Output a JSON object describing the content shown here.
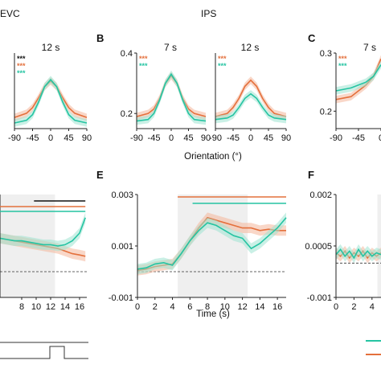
{
  "titles": {
    "evc": "EVC",
    "ips": "IPS"
  },
  "colors": {
    "orange": "#e4703c",
    "teal": "#25c4a2",
    "orange_fill": "#f4b79a",
    "teal_fill": "#9fe3d2",
    "shade": "#efefef"
  },
  "icons": [
    "star-marker",
    "significance-bar",
    "dashed-baseline"
  ],
  "chart_data": [
    {
      "id": "evc-12s",
      "panel": "",
      "type": "line",
      "title": "12 s",
      "xlim": [
        -90,
        90
      ],
      "ylim": [
        0.15,
        0.42
      ],
      "xticks": [
        "-90",
        "-45",
        "0",
        "45",
        "90"
      ],
      "stars": [
        "***",
        "***",
        "***"
      ],
      "series": [
        {
          "x": [
            -90,
            -60,
            -45,
            -30,
            -15,
            0,
            15,
            30,
            45,
            60,
            90
          ],
          "y": [
            0.19,
            0.205,
            0.225,
            0.26,
            0.3,
            0.32,
            0.3,
            0.26,
            0.225,
            0.205,
            0.19
          ]
        },
        {
          "x": [
            -90,
            -60,
            -45,
            -30,
            -15,
            0,
            15,
            30,
            45,
            60,
            90
          ],
          "y": [
            0.17,
            0.18,
            0.2,
            0.245,
            0.3,
            0.325,
            0.3,
            0.245,
            0.2,
            0.18,
            0.17
          ]
        }
      ]
    },
    {
      "id": "ips-7s",
      "panel": "B",
      "type": "line",
      "title": "7 s",
      "xlim": [
        -90,
        90
      ],
      "ylim": [
        0.15,
        0.4
      ],
      "yticks": [
        "0.4",
        "0.2"
      ],
      "xticks": [
        "-90",
        "-45",
        "0",
        "45",
        "90"
      ],
      "stars": [
        "***",
        "***"
      ],
      "series": [
        {
          "x": [
            -90,
            -60,
            -45,
            -30,
            -15,
            0,
            15,
            30,
            45,
            60,
            90
          ],
          "y": [
            0.19,
            0.2,
            0.215,
            0.25,
            0.3,
            0.325,
            0.3,
            0.25,
            0.215,
            0.2,
            0.19
          ]
        },
        {
          "x": [
            -90,
            -60,
            -45,
            -30,
            -15,
            0,
            15,
            30,
            45,
            60,
            90
          ],
          "y": [
            0.175,
            0.18,
            0.2,
            0.245,
            0.3,
            0.33,
            0.3,
            0.245,
            0.2,
            0.18,
            0.175
          ]
        }
      ]
    },
    {
      "id": "ips-12s",
      "panel": "",
      "type": "line",
      "title": "12 s",
      "xlim": [
        -90,
        90
      ],
      "ylim": [
        0.15,
        0.4
      ],
      "xticks": [
        "-90",
        "-45",
        "0",
        "45",
        "90"
      ],
      "stars": [
        "***",
        "***"
      ],
      "series": [
        {
          "x": [
            -90,
            -60,
            -45,
            -30,
            -15,
            0,
            15,
            30,
            45,
            60,
            90
          ],
          "y": [
            0.19,
            0.2,
            0.22,
            0.25,
            0.29,
            0.31,
            0.29,
            0.25,
            0.22,
            0.2,
            0.19
          ]
        },
        {
          "x": [
            -90,
            -60,
            -45,
            -30,
            -15,
            0,
            15,
            30,
            45,
            60,
            90
          ],
          "y": [
            0.18,
            0.185,
            0.195,
            0.22,
            0.25,
            0.265,
            0.25,
            0.22,
            0.195,
            0.185,
            0.18
          ]
        }
      ]
    },
    {
      "id": "c-7s",
      "panel": "C",
      "type": "line",
      "title": "7 s",
      "xlim": [
        -90,
        0
      ],
      "ylim": [
        0.17,
        0.3
      ],
      "yticks": [
        "0.3",
        "0.2"
      ],
      "xticks": [
        "-90",
        "-45",
        "0"
      ],
      "stars": [
        "***",
        "***"
      ],
      "series": [
        {
          "x": [
            -90,
            -60,
            -45,
            -30,
            -15,
            0
          ],
          "y": [
            0.22,
            0.225,
            0.235,
            0.245,
            0.26,
            0.29
          ]
        },
        {
          "x": [
            -90,
            -60,
            -45,
            -30,
            -15,
            0
          ],
          "y": [
            0.235,
            0.24,
            0.245,
            0.25,
            0.26,
            0.28
          ]
        }
      ]
    },
    {
      "id": "evc-time",
      "panel": "",
      "type": "line",
      "xlim": [
        5,
        17
      ],
      "ylim": [
        -0.001,
        0.003
      ],
      "xticks": [
        "8",
        "10",
        "12",
        "14",
        "16"
      ],
      "series": [
        {
          "x": [
            5,
            6,
            7,
            8,
            9,
            10,
            11,
            12,
            13,
            14,
            15,
            16,
            16.8
          ],
          "y": [
            0.0013,
            0.00125,
            0.0012,
            0.00115,
            0.0011,
            0.00105,
            0.001,
            0.00095,
            0.0009,
            0.0008,
            0.0007,
            0.00065,
            0.0006
          ]
        },
        {
          "x": [
            5,
            6,
            7,
            8,
            9,
            10,
            11,
            12,
            13,
            14,
            15,
            16,
            16.8
          ],
          "y": [
            0.0013,
            0.00125,
            0.0012,
            0.0012,
            0.00115,
            0.0011,
            0.00105,
            0.00105,
            0.001,
            0.00105,
            0.0012,
            0.0015,
            0.0021
          ]
        }
      ]
    },
    {
      "id": "ips-time",
      "panel": "E",
      "type": "line",
      "xlabel": "Time (s)",
      "xlim": [
        0,
        17
      ],
      "ylim": [
        -0.001,
        0.003
      ],
      "yticks": [
        "0.003",
        "0.001",
        "-0.001"
      ],
      "xticks": [
        "0",
        "2",
        "4",
        "6",
        "8",
        "10",
        "12",
        "14",
        "16"
      ],
      "series": [
        {
          "x": [
            0,
            1,
            2,
            3,
            4,
            5,
            6,
            7,
            8,
            9,
            10,
            11,
            12,
            13,
            14,
            15,
            16,
            17
          ],
          "y": [
            5e-05,
            0.0001,
            0.0002,
            0.00025,
            0.0003,
            0.0007,
            0.0012,
            0.0017,
            0.0021,
            0.002,
            0.0019,
            0.0018,
            0.0017,
            0.0017,
            0.0016,
            0.00165,
            0.0016,
            0.0016
          ]
        },
        {
          "x": [
            0,
            1,
            2,
            3,
            4,
            5,
            6,
            7,
            8,
            9,
            10,
            11,
            12,
            13,
            14,
            15,
            16,
            17
          ],
          "y": [
            0.0001,
            0.00015,
            0.0003,
            0.00035,
            0.00025,
            0.0007,
            0.0012,
            0.0016,
            0.0019,
            0.0018,
            0.0016,
            0.0014,
            0.0013,
            0.0009,
            0.0011,
            0.0014,
            0.0017,
            0.0021
          ]
        }
      ]
    },
    {
      "id": "f-time",
      "panel": "F",
      "type": "line",
      "xlim": [
        0,
        5
      ],
      "ylim": [
        -0.001,
        0.002
      ],
      "yticks": [
        "0.002",
        "0.0005",
        "-0.001"
      ],
      "xticks": [
        "0",
        "2",
        "4"
      ],
      "series": [
        {
          "x": [
            0,
            0.5,
            1,
            1.5,
            2,
            2.5,
            3,
            3.5,
            4,
            4.5,
            5
          ],
          "y": [
            0.0003,
            0.0002,
            0.00035,
            0.00015,
            0.0003,
            0.0002,
            0.00035,
            0.00015,
            0.0003,
            0.0002,
            0.0003
          ]
        },
        {
          "x": [
            0,
            0.5,
            1,
            1.5,
            2,
            2.5,
            3,
            3.5,
            4,
            4.5,
            5
          ],
          "y": [
            0.00025,
            0.0004,
            0.0002,
            0.00035,
            0.00015,
            0.0004,
            0.0002,
            0.00035,
            0.0002,
            0.0003,
            0.00025
          ]
        }
      ]
    }
  ],
  "axis_labels": {
    "orientation": "Orientation (°)",
    "time": "Time (s)"
  }
}
